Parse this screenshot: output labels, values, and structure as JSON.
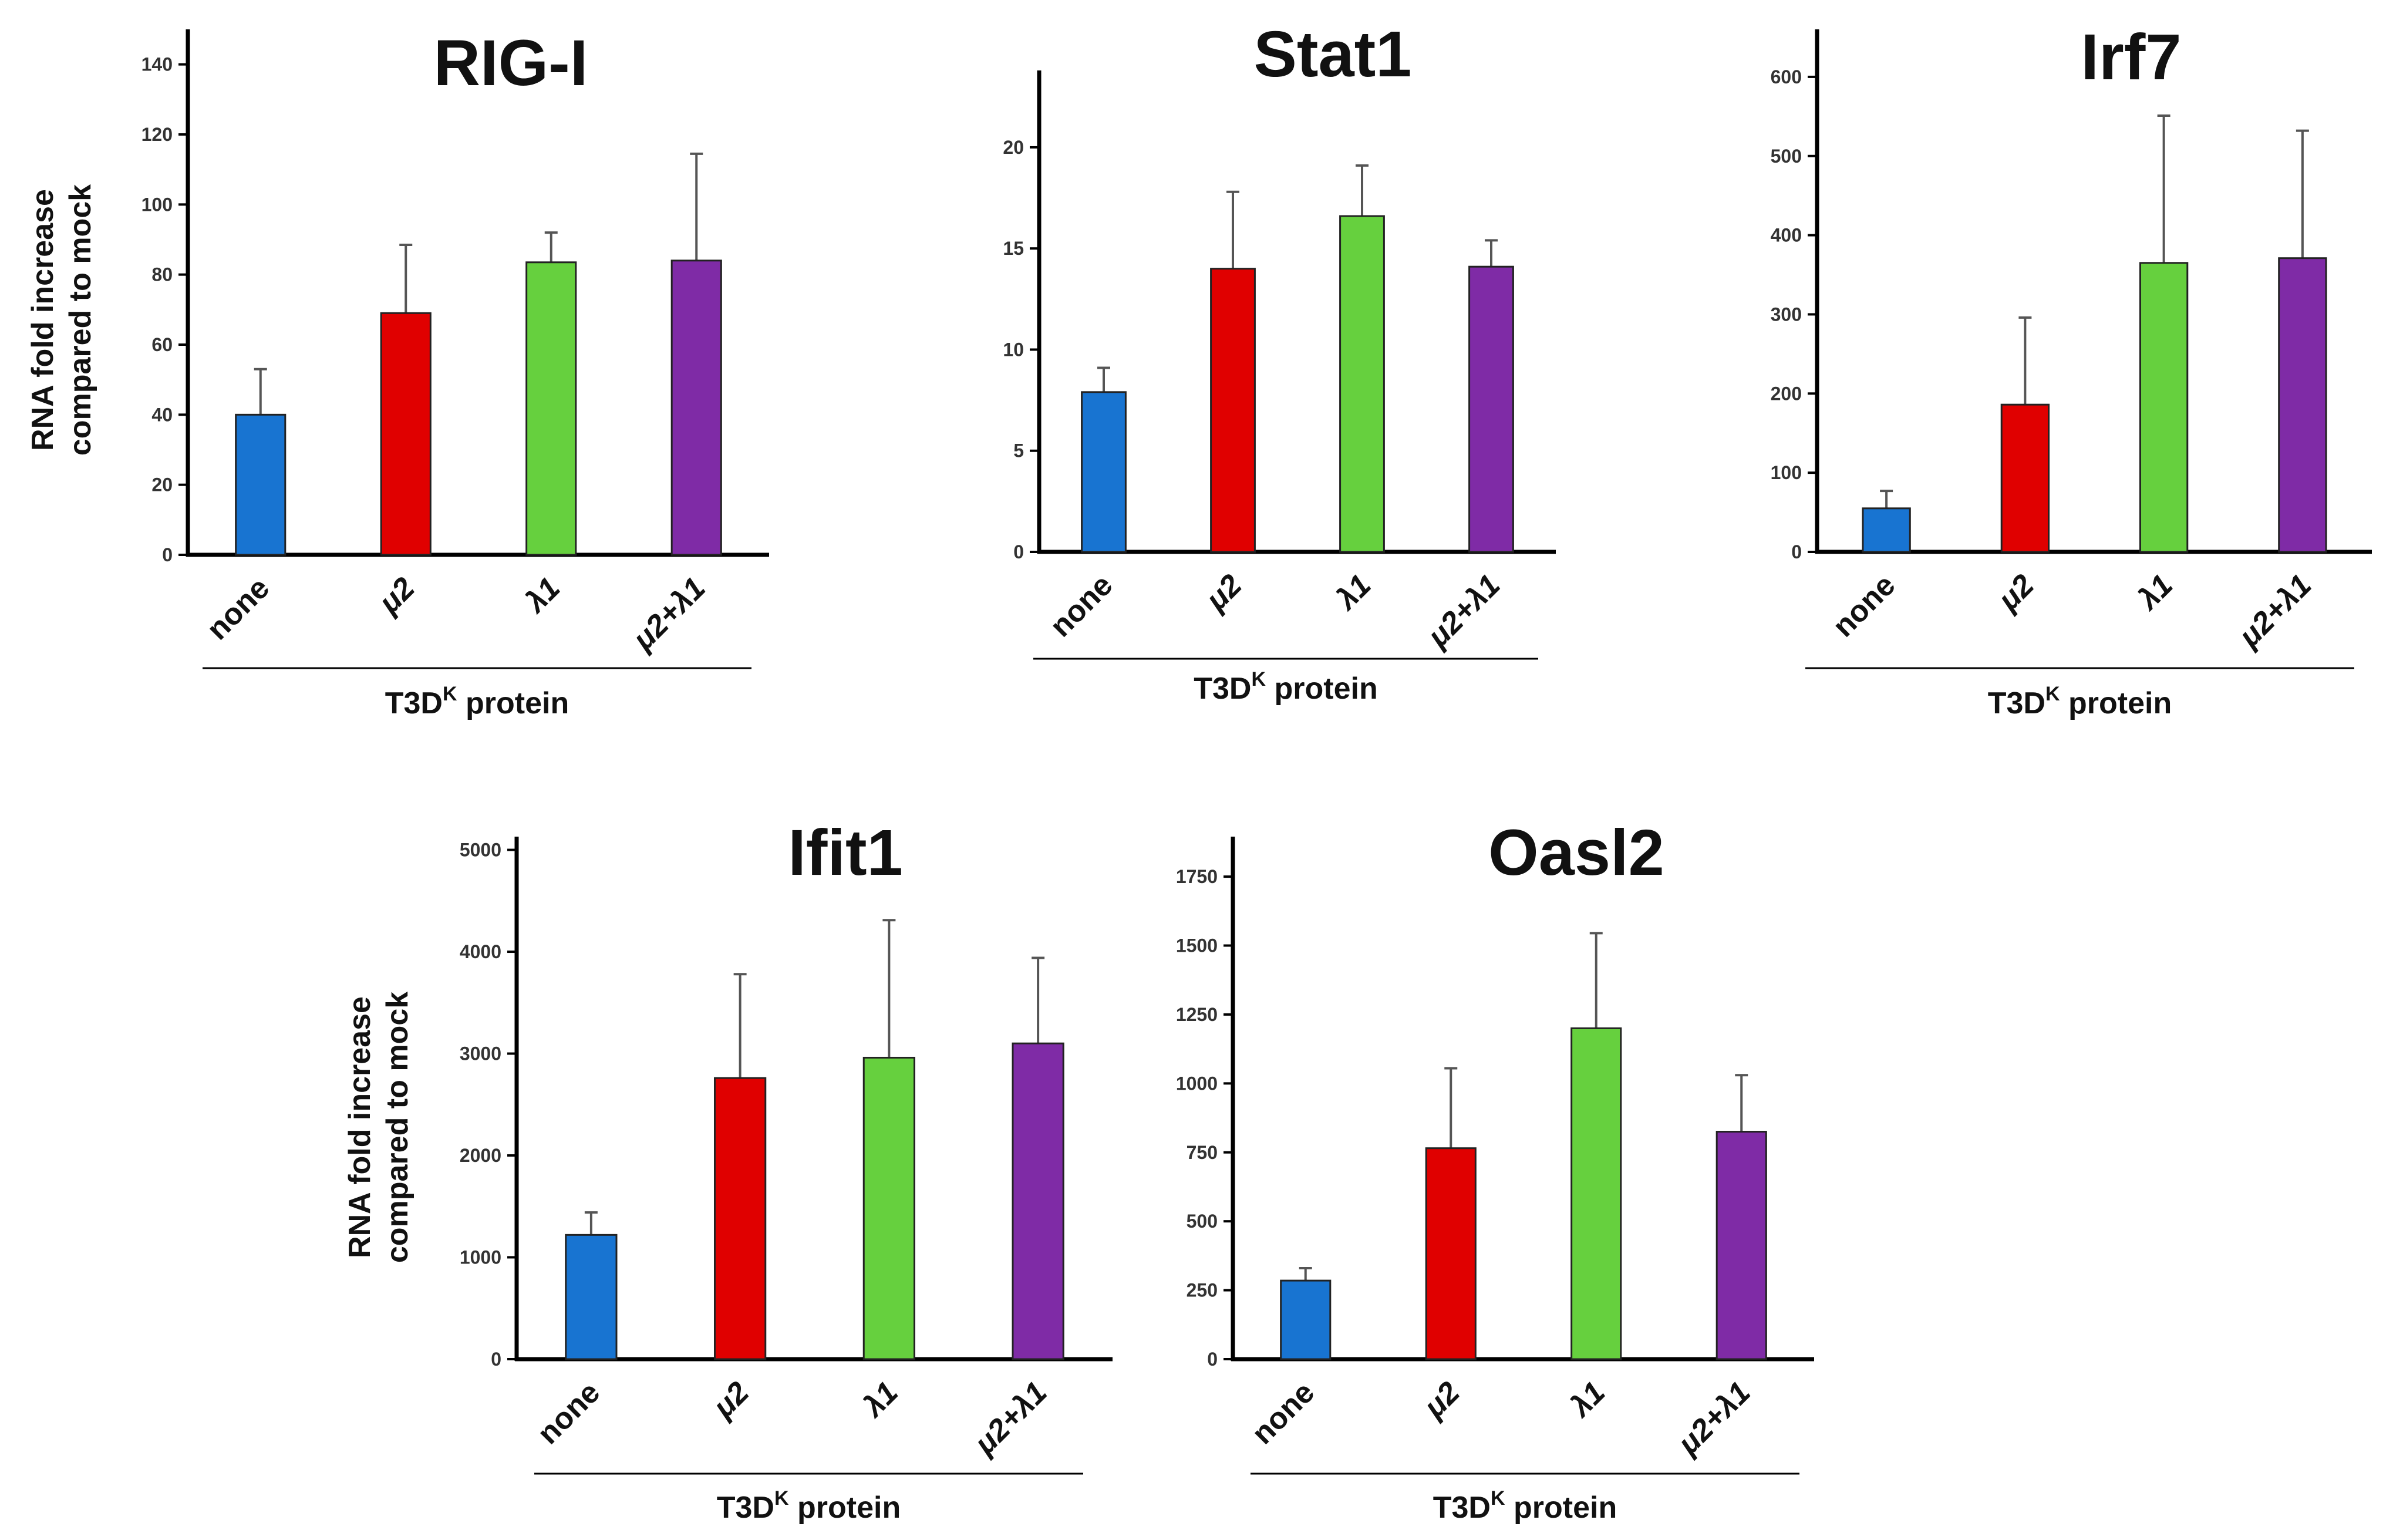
{
  "y_axis_label_line1": "RNA fold increase",
  "y_axis_label_line2": "compared to mock",
  "group_label_main": "T3D",
  "group_label_sup": "K",
  "group_label_rest": " protein",
  "colors": {
    "none": "#1874d1",
    "mu2": "#e00000",
    "lambda1": "#66d03e",
    "mu2lambda1": "#7f2ba6",
    "axis": "#000000",
    "error": "#555555"
  },
  "chart_data": [
    {
      "type": "bar",
      "title": "RIG-I",
      "categories": [
        "none",
        "μ2",
        "λ1",
        "μ2+λ1"
      ],
      "values": [
        40,
        69,
        83.5,
        84
      ],
      "errors": [
        13,
        19.5,
        8.5,
        30.5
      ],
      "yticks": [
        0,
        20,
        40,
        60,
        80,
        100,
        120,
        140
      ],
      "ylim": [
        0,
        150
      ],
      "ylabel": "RNA fold increase compared to mock",
      "xlabel": "T3DK protein"
    },
    {
      "type": "bar",
      "title": "Stat1",
      "categories": [
        "none",
        "μ2",
        "λ1",
        "μ2+λ1"
      ],
      "values": [
        7.9,
        14,
        16.6,
        14.1
      ],
      "errors": [
        1.2,
        3.8,
        2.5,
        1.3
      ],
      "yticks": [
        0,
        5,
        10,
        15,
        20
      ],
      "ylim": [
        0,
        23.8
      ],
      "ylabel": "",
      "xlabel": "T3DK protein"
    },
    {
      "type": "bar",
      "title": "Irf7",
      "categories": [
        "none",
        "μ2",
        "λ1",
        "μ2+λ1"
      ],
      "values": [
        55,
        186,
        365,
        371
      ],
      "errors": [
        22,
        110,
        186,
        161
      ],
      "yticks": [
        0,
        100,
        200,
        300,
        400,
        500,
        600
      ],
      "ylim": [
        0,
        660
      ],
      "ylabel": "",
      "xlabel": "T3DK protein"
    },
    {
      "type": "bar",
      "title": "Ifit1",
      "categories": [
        "none",
        "μ2",
        "λ1",
        "μ2+λ1"
      ],
      "values": [
        1220,
        2760,
        2960,
        3100
      ],
      "errors": [
        220,
        1020,
        1350,
        840
      ],
      "yticks": [
        0,
        1000,
        2000,
        3000,
        4000,
        5000
      ],
      "ylim": [
        0,
        5130
      ],
      "ylabel": "RNA fold increase compared to mock",
      "xlabel": "T3DK protein"
    },
    {
      "type": "bar",
      "title": "Oasl2",
      "categories": [
        "none",
        "μ2",
        "λ1",
        "μ2+λ1"
      ],
      "values": [
        285,
        765,
        1200,
        825
      ],
      "errors": [
        45,
        290,
        345,
        205
      ],
      "yticks": [
        0,
        250,
        500,
        750,
        1000,
        1250,
        1500,
        1750
      ],
      "ylim": [
        0,
        1895
      ],
      "ylabel": "",
      "xlabel": "T3DK protein"
    }
  ]
}
